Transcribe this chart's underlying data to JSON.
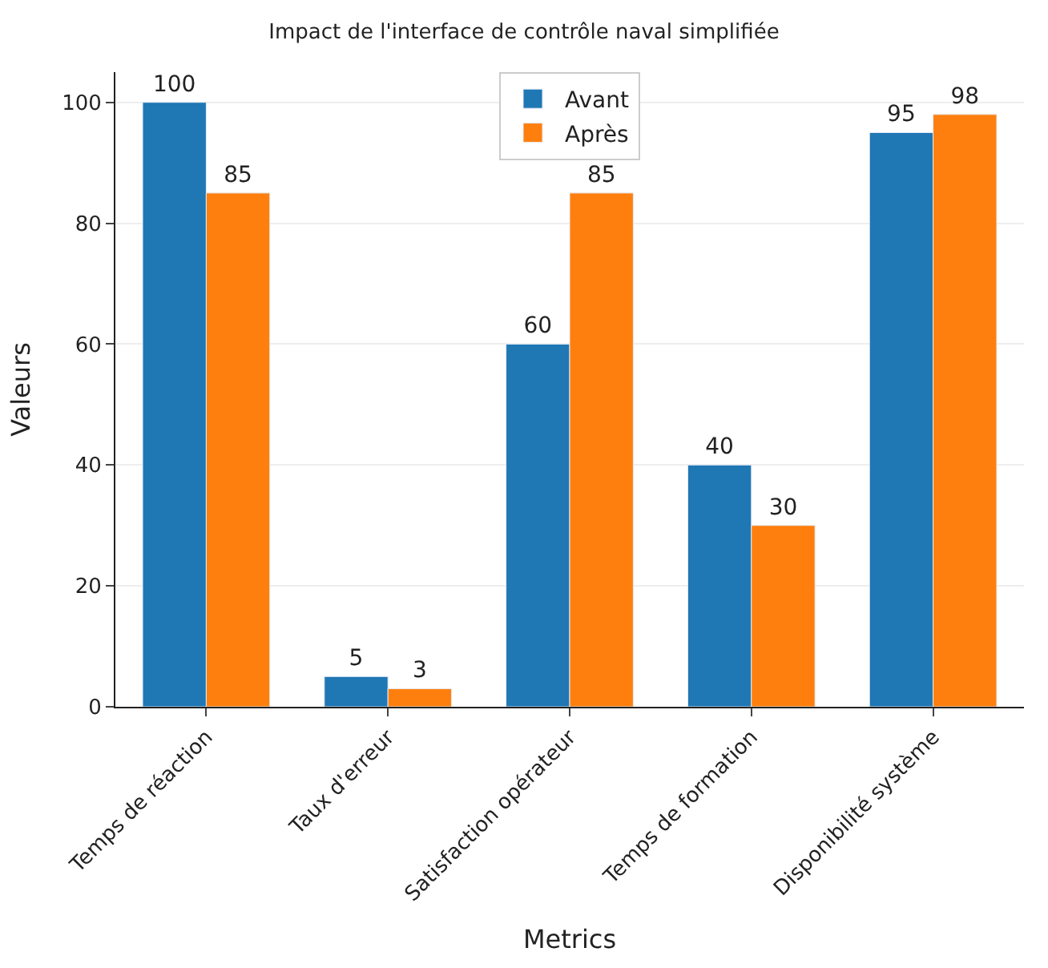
{
  "chart_data": {
    "type": "bar",
    "title": "Impact de l'interface de contrôle naval simplifiée",
    "xlabel": "Metrics",
    "ylabel": "Valeurs",
    "categories": [
      "Temps de réaction",
      "Taux d'erreur",
      "Satisfaction opérateur",
      "Temps de formation",
      "Disponibilité système"
    ],
    "series": [
      {
        "name": "Avant",
        "color": "#1f77b4",
        "values": [
          100,
          5,
          60,
          40,
          95
        ]
      },
      {
        "name": "Après",
        "color": "#ff7f0e",
        "values": [
          85,
          3,
          85,
          30,
          98
        ]
      }
    ],
    "ylim": [
      0,
      105
    ],
    "yticks": [
      0,
      20,
      40,
      60,
      80,
      100
    ],
    "grid": "y",
    "legend": "top",
    "data_labels": true
  }
}
